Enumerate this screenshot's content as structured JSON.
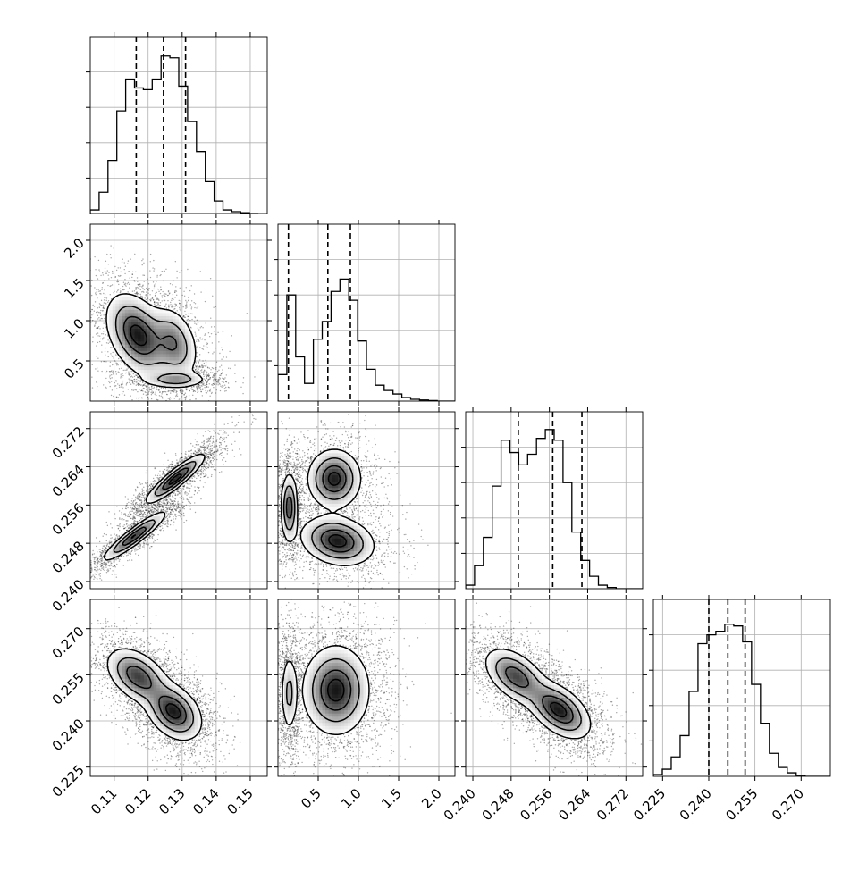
{
  "chart_data": {
    "type": "corner",
    "grid": true,
    "legend": "none",
    "parameters": [
      {
        "range": [
          0.103,
          0.155
        ],
        "ticks": [
          0.11,
          0.12,
          0.13,
          0.14,
          0.15
        ],
        "tick_labels": [
          "0.11",
          "0.12",
          "0.13",
          "0.14",
          "0.15"
        ],
        "quantiles": [
          0.1165,
          0.1245,
          0.131
        ],
        "hist_step": 0.0026,
        "hist_counts": [
          0.02,
          0.12,
          0.3,
          0.58,
          0.76,
          0.71,
          0.7,
          0.76,
          0.89,
          0.88,
          0.72,
          0.52,
          0.35,
          0.18,
          0.07,
          0.02,
          0.01,
          0.004,
          0.0
        ]
      },
      {
        "range": [
          0.0,
          2.2
        ],
        "ticks": [
          0.5,
          1.0,
          1.5,
          2.0
        ],
        "tick_labels": [
          "0.5",
          "1.0",
          "1.5",
          "2.0"
        ],
        "quantiles": [
          0.13,
          0.62,
          0.9
        ],
        "hist_step": 0.11,
        "hist_counts": [
          0.15,
          0.6,
          0.25,
          0.1,
          0.35,
          0.45,
          0.62,
          0.69,
          0.57,
          0.34,
          0.18,
          0.09,
          0.06,
          0.04,
          0.02,
          0.01,
          0.006,
          0.003,
          0.0,
          0.0
        ]
      },
      {
        "range": [
          0.2385,
          0.2755
        ],
        "ticks": [
          0.24,
          0.248,
          0.256,
          0.264,
          0.272
        ],
        "tick_labels": [
          "0.240",
          "0.248",
          "0.256",
          "0.264",
          "0.272"
        ],
        "quantiles": [
          0.2495,
          0.2567,
          0.2628
        ],
        "hist_step": 0.00185,
        "hist_counts": [
          0.02,
          0.13,
          0.29,
          0.58,
          0.84,
          0.77,
          0.7,
          0.76,
          0.85,
          0.9,
          0.84,
          0.6,
          0.32,
          0.16,
          0.07,
          0.02,
          0.007,
          0.0,
          0.0,
          0.0
        ]
      },
      {
        "range": [
          0.222,
          0.2795
        ],
        "ticks": [
          0.225,
          0.24,
          0.255,
          0.27
        ],
        "tick_labels": [
          "0.225",
          "0.240",
          "0.255",
          "0.270"
        ],
        "quantiles": [
          0.24,
          0.2462,
          0.2518
        ],
        "hist_step": 0.0029,
        "hist_counts": [
          0.01,
          0.04,
          0.11,
          0.23,
          0.48,
          0.75,
          0.8,
          0.82,
          0.86,
          0.85,
          0.76,
          0.52,
          0.3,
          0.13,
          0.05,
          0.02,
          0.006,
          0.0,
          0.0,
          0.0
        ]
      }
    ],
    "histogram_y_ticks": [
      0.2,
      0.4,
      0.6,
      0.8
    ],
    "joint_modes": [
      {
        "row": 1,
        "col": 0,
        "components": [
          {
            "center": [
              0.117,
              0.82
            ],
            "sd": [
              0.0045,
              0.25
            ],
            "rho": -0.4,
            "weight": 0.45
          },
          {
            "center": [
              0.1275,
              0.72
            ],
            "sd": [
              0.0035,
              0.22
            ],
            "rho": -0.3,
            "weight": 0.3
          },
          {
            "center": [
              0.128,
              0.27
            ],
            "sd": [
              0.0045,
              0.05
            ],
            "rho": 0.0,
            "weight": 0.25
          }
        ]
      },
      {
        "row": 2,
        "col": 0,
        "components": [
          {
            "center": [
              0.116,
              0.2495
            ],
            "sd": [
              0.0045,
              0.0025
            ],
            "rho": 0.92,
            "weight": 0.45
          },
          {
            "center": [
              0.128,
              0.2615
            ],
            "sd": [
              0.0042,
              0.0025
            ],
            "rho": 0.9,
            "weight": 0.55
          }
        ]
      },
      {
        "row": 2,
        "col": 1,
        "components": [
          {
            "center": [
              0.14,
              0.2555
            ],
            "sd": [
              0.05,
              0.0035
            ],
            "rho": 0.0,
            "weight": 0.3
          },
          {
            "center": [
              0.7,
              0.2615
            ],
            "sd": [
              0.16,
              0.003
            ],
            "rho": 0.0,
            "weight": 0.35
          },
          {
            "center": [
              0.74,
              0.2485
            ],
            "sd": [
              0.22,
              0.0025
            ],
            "rho": -0.2,
            "weight": 0.35
          }
        ]
      },
      {
        "row": 3,
        "col": 0,
        "components": [
          {
            "center": [
              0.117,
              0.2545
            ],
            "sd": [
              0.0045,
              0.0045
            ],
            "rho": -0.45,
            "weight": 0.45
          },
          {
            "center": [
              0.1275,
              0.243
            ],
            "sd": [
              0.004,
              0.0045
            ],
            "rho": -0.35,
            "weight": 0.55
          }
        ]
      },
      {
        "row": 3,
        "col": 1,
        "components": [
          {
            "center": [
              0.14,
              0.249
            ],
            "sd": [
              0.05,
              0.0065
            ],
            "rho": 0.0,
            "weight": 0.3
          },
          {
            "center": [
              0.72,
              0.25
            ],
            "sd": [
              0.2,
              0.007
            ],
            "rho": 0.0,
            "weight": 0.7
          }
        ]
      },
      {
        "row": 3,
        "col": 2,
        "components": [
          {
            "center": [
              0.249,
              0.2545
            ],
            "sd": [
              0.0032,
              0.0045
            ],
            "rho": -0.5,
            "weight": 0.45
          },
          {
            "center": [
              0.258,
              0.2435
            ],
            "sd": [
              0.0032,
              0.0045
            ],
            "rho": -0.5,
            "weight": 0.55
          }
        ]
      }
    ],
    "contour_levels_relative": [
      0.12,
      0.35,
      0.65,
      0.88
    ]
  }
}
